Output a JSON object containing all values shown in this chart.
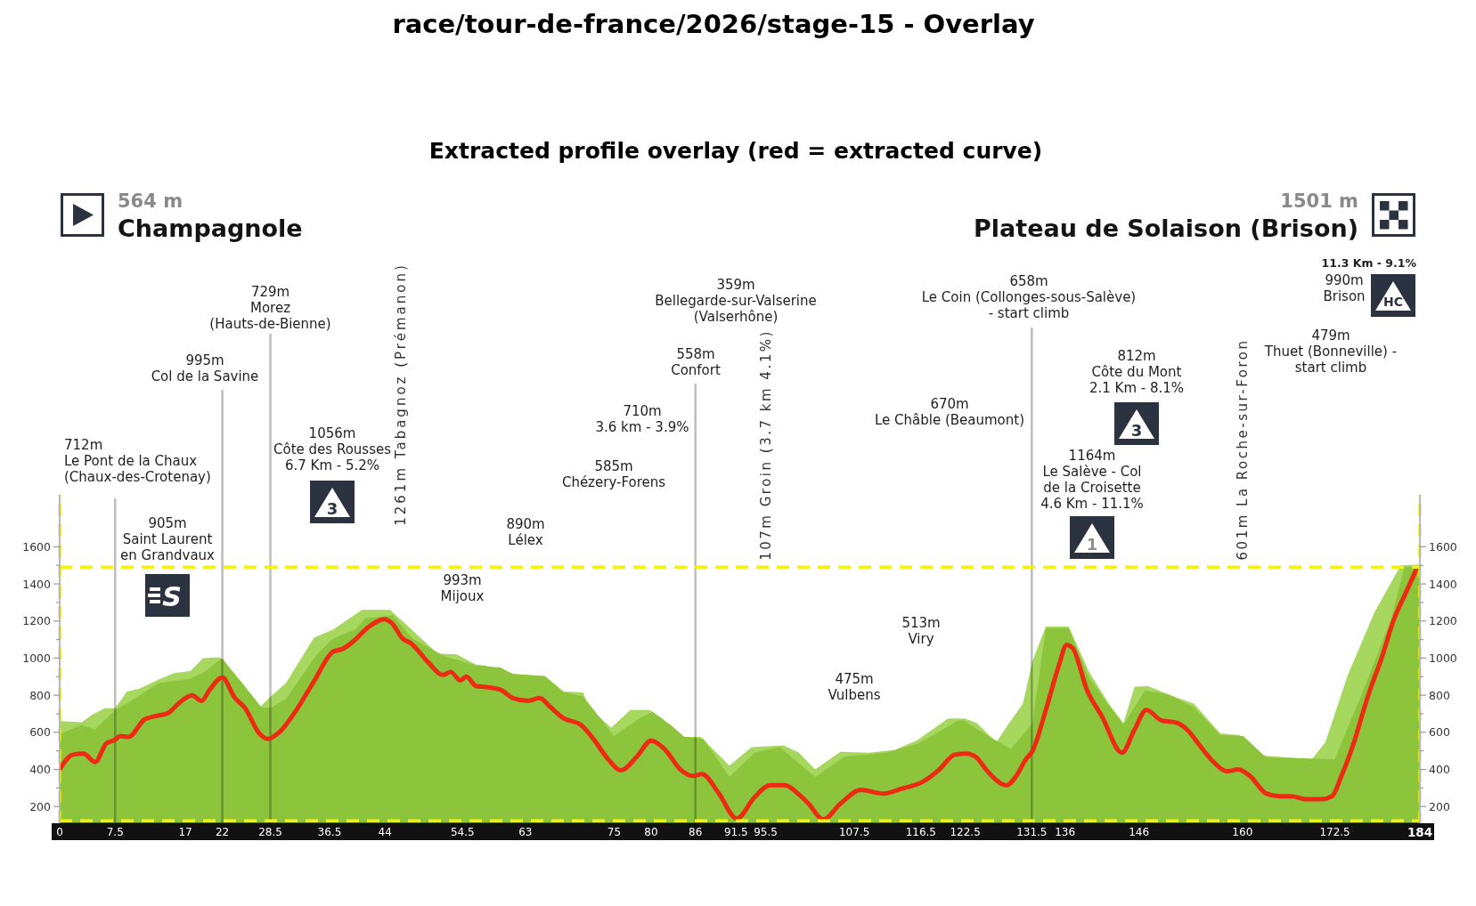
{
  "chart_data": {
    "type": "area",
    "title": "race/tour-de-france/2026/stage-15 - Overlay",
    "subtitle": "Extracted profile overlay (red = extracted curve)",
    "xlim": [
      0,
      184
    ],
    "xticks": [
      0,
      7.5,
      17,
      22,
      28.5,
      36.5,
      44,
      54.5,
      63,
      75,
      80,
      86,
      91.5,
      95.5,
      107.5,
      116.5,
      122.5,
      131.5,
      136,
      146,
      160,
      172.5,
      184
    ],
    "ylim": [
      110,
      1880
    ],
    "yticks": [
      200,
      {
        "value": 300,
        "label": null
      },
      400,
      {
        "value": 500,
        "label": null
      },
      600,
      {
        "value": 700,
        "label": null
      },
      800,
      {
        "value": 900,
        "label": null
      },
      1000,
      {
        "value": 1100,
        "label": null
      },
      1200,
      {
        "value": 1300,
        "label": null
      },
      1400,
      {
        "value": 1500,
        "label": null
      },
      1600
    ],
    "y2lim": [
      110,
      1880
    ],
    "y2ticks": [
      200,
      {
        "value": 300,
        "label": null
      },
      400,
      {
        "value": 500,
        "label": null
      },
      600,
      {
        "value": 700,
        "label": null
      },
      800,
      {
        "value": 900,
        "label": null
      },
      1000,
      {
        "value": 1100,
        "label": null
      },
      1200,
      {
        "value": 1300,
        "label": null
      },
      1400,
      {
        "value": 1500,
        "label": null
      },
      1600
    ],
    "series": [
      {
        "color": "#a6d75e",
        "x": [
          0,
          3,
          4.4,
          6.1,
          7.5,
          9.1,
          10.8,
          13.4,
          15.5,
          17.7,
          19.4,
          21.5,
          22.2,
          24.5,
          27.1,
          28.2,
          30.6,
          34.4,
          37,
          39.6,
          40.9,
          44.7,
          47.3,
          51.1,
          53.7,
          56.3,
          57.5,
          61.3,
          63.4,
          65.6,
          68.2,
          70.8,
          71.6,
          74.6,
          77.2,
          79.8,
          81.5,
          84.1,
          86.7,
          90.6,
          93.6,
          97.9,
          100,
          102.2,
          105.6,
          109.5,
          112.9,
          115.9,
          120.2,
          122.4,
          124.1,
          126.7,
          128.1,
          130.3,
          131.6,
          133.4,
          136.5,
          139.2,
          141.9,
          143.9,
          145.4,
          147.2,
          149.9,
          153.4,
          157,
          159.6,
          162.8,
          169.4,
          171.2,
          174.3,
          177.9,
          181.4,
          184
        ],
        "values": [
          660,
          655,
          695,
          730,
          730,
          820,
          835,
          885,
          920,
          930,
          1000,
          1005,
          990,
          865,
          735,
          780,
          865,
          1110,
          1155,
          1225,
          1260,
          1260,
          1165,
          1025,
          1020,
          965,
          960,
          915,
          910,
          905,
          820,
          815,
          735,
          625,
          720,
          720,
          675,
          575,
          575,
          420,
          520,
          530,
          490,
          400,
          495,
          490,
          505,
          555,
          675,
          675,
          650,
          545,
          630,
          755,
          985,
          1170,
          1170,
          930,
          755,
          650,
          845,
          850,
          805,
          755,
          595,
          585,
          475,
          455,
          545,
          915,
          1250,
          1500,
          1505
        ]
      },
      {
        "color": "#8cc43c",
        "x": [
          0,
          3,
          4.8,
          7.5,
          9.1,
          13.4,
          17.7,
          19.8,
          21.9,
          24.5,
          27.3,
          28.5,
          30.6,
          34.8,
          37,
          40,
          41.3,
          45.1,
          47.7,
          52,
          56.3,
          59.6,
          61.3,
          65.6,
          68.2,
          70.8,
          75,
          78.4,
          80.2,
          82.8,
          84.5,
          87.1,
          90.6,
          94,
          97.4,
          102.2,
          106.2,
          111.8,
          116.2,
          121.4,
          122.3,
          125,
          128.7,
          131.6,
          133.4,
          136.5,
          139.2,
          143.9,
          146.8,
          149.9,
          153.4,
          157,
          160.1,
          163.2,
          172.5,
          177.4,
          180.1,
          181.9,
          184
        ],
        "values": [
          590,
          640,
          615,
          720,
          755,
          865,
          890,
          930,
          1000,
          875,
          735,
          730,
          780,
          1020,
          1105,
          1155,
          1215,
          1230,
          1105,
          1010,
          960,
          950,
          915,
          900,
          815,
          795,
          580,
          675,
          710,
          635,
          575,
          565,
          360,
          490,
          520,
          360,
          470,
          490,
          540,
          660,
          665,
          595,
          510,
          650,
          1160,
          1160,
          895,
          640,
          825,
          805,
          735,
          585,
          580,
          465,
          455,
          930,
          1210,
          1490,
          1495
        ]
      },
      {
        "type": "line",
        "color": "#ee2a14",
        "x": [
          0,
          1.8,
          3.2,
          4.8,
          6.3,
          7.5,
          8.2,
          9.3,
          11.5,
          12.7,
          14.7,
          16.2,
          17.9,
          19.2,
          20.3,
          22,
          23.7,
          25,
          27.1,
          28.2,
          29.7,
          32.1,
          34.4,
          37,
          38.3,
          40,
          41.7,
          43.9,
          44.9,
          46.4,
          47.5,
          49.9,
          51.8,
          52.9,
          54.2,
          55,
          56.3,
          57.5,
          59.6,
          61.3,
          63.4,
          64.9,
          66.4,
          68.2,
          70.5,
          72,
          74.2,
          75.9,
          78.1,
          80,
          81.7,
          84.1,
          85.6,
          86.9,
          89.1,
          91.6,
          94,
          96.1,
          98.1,
          100,
          101.3,
          103.3,
          105.6,
          108.4,
          111.4,
          113.8,
          116.8,
          119,
          121.1,
          122.6,
          124,
          125.4,
          128.1,
          129.4,
          130.7,
          131.6,
          133.4,
          135.2,
          136.2,
          137,
          139,
          141,
          143.7,
          145.4,
          147,
          149,
          151.2,
          152.5,
          154.3,
          156.1,
          157.9,
          159.4,
          161,
          163.2,
          165,
          166.7,
          168.5,
          170.7,
          172.1,
          173.4,
          175.2,
          176.5,
          177.4,
          178.7,
          180.5,
          181.9,
          183.6
        ],
        "values": [
          400,
          480,
          485,
          440,
          540,
          560,
          580,
          575,
          670,
          685,
          705,
          760,
          800,
          770,
          830,
          895,
          785,
          735,
          590,
          565,
          600,
          725,
          875,
          1035,
          1050,
          1100,
          1165,
          1210,
          1190,
          1105,
          1080,
          975,
          910,
          925,
          880,
          900,
          850,
          845,
          830,
          785,
          770,
          785,
          735,
          675,
          640,
          575,
          455,
          395,
          470,
          555,
          515,
          395,
          365,
          375,
          275,
          135,
          250,
          315,
          315,
          265,
          215,
          130,
          215,
          290,
          270,
          295,
          335,
          400,
          480,
          485,
          465,
          395,
          315,
          365,
          455,
          500,
          720,
          965,
          1070,
          1055,
          825,
          685,
          490,
          615,
          720,
          665,
          650,
          615,
          525,
          440,
          390,
          400,
          365,
          270,
          255,
          255,
          240,
          240,
          255,
          365,
          560,
          735,
          845,
          985,
          1210,
          1335,
          1485
        ]
      }
    ],
    "ref_lines": [
      {
        "axis": "x",
        "value": 7.5,
        "color": "#bdbdbd"
      },
      {
        "axis": "x",
        "value": 22,
        "color": "#bdbdbd"
      },
      {
        "axis": "x",
        "value": 28.5,
        "color": "#bdbdbd"
      },
      {
        "axis": "x",
        "value": 86,
        "color": "#bdbdbd"
      },
      {
        "axis": "x",
        "value": 131.5,
        "color": "#bdbdbd"
      },
      {
        "axis": "y",
        "value": 1490,
        "color": "#f2f212",
        "line_style": "dashed"
      },
      {
        "axis": "y",
        "value": 123,
        "color": "#f2f212",
        "line_style": "dashed"
      },
      {
        "axis": "x",
        "value": 0,
        "color": "#f2f212",
        "line_style": "dashed"
      },
      {
        "axis": "x",
        "value": 184,
        "color": "#f2f212",
        "line_style": "dashed"
      }
    ],
    "annotations": [
      "564 m",
      "Champagnole",
      "1501 m",
      "Plateau de Solaison (Brison)",
      "712m Le Pont de la Chaux (Chaux-des-Crotenay)",
      "905m Saint Laurent en Grandvaux",
      "S",
      "995m Col de la Savine",
      "729m Morez (Hauts-de-Bienne)",
      "1056m Côte des Rousses 6.7 Km - 5.2%",
      "3",
      "1261m Tabagnoz (Prémanon)",
      "993m Mijoux",
      "890m Lélex",
      "585m Chézery-Forens",
      "710m 3.6 km - 3.9%",
      "558m Confort",
      "359m Bellegarde-sur-Valserine (Valserhône)",
      "107m Groin (3.7 km 4.1%)",
      "475m Vulbens",
      "513m Viry",
      "670m Le Châble (Beaumont)",
      "658m Le Coin (Collonges-sous-Salève) - start climb",
      "1164m Le Salève - Col de la Croisette 4.6 Km - 11.1%",
      "1",
      "812m Côte du Mont 2.1 Km - 8.1%",
      "3",
      "601m La Roche-sur-Foron",
      "479m Thuet (Bonneville) - start climb",
      "11.3 Km - 9.1%",
      "990m Brison",
      "HC"
    ]
  }
}
